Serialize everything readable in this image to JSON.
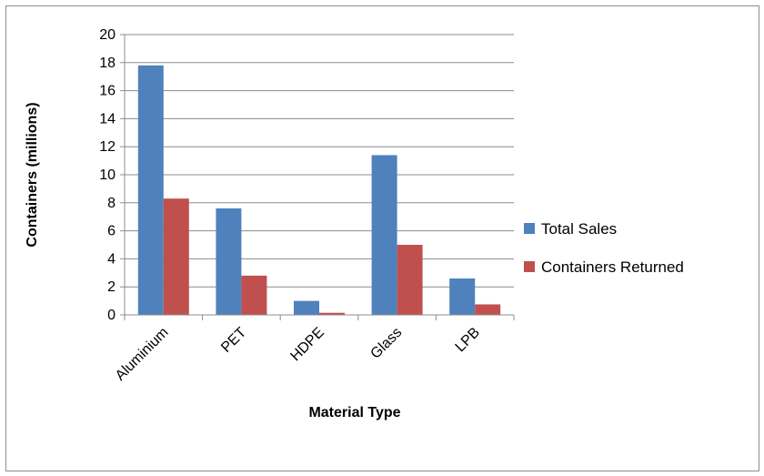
{
  "chart_data": {
    "type": "bar",
    "title": "",
    "xlabel": "Material Type",
    "ylabel": "Containers (millions)",
    "categories": [
      "Aluminium",
      "PET",
      "HDPE",
      "Glass",
      "LPB"
    ],
    "series": [
      {
        "name": "Total Sales",
        "values": [
          17.8,
          7.6,
          1.0,
          11.4,
          2.6
        ],
        "color": "#4f81bd"
      },
      {
        "name": "Containers Returned",
        "values": [
          8.3,
          2.8,
          0.15,
          5.0,
          0.75
        ],
        "color": "#c0504d"
      }
    ],
    "ylim": [
      0,
      20
    ],
    "yticks": [
      "0",
      "2",
      "4",
      "6",
      "8",
      "10",
      "12",
      "14",
      "16",
      "18",
      "20"
    ],
    "grid": true,
    "legend": "right"
  }
}
